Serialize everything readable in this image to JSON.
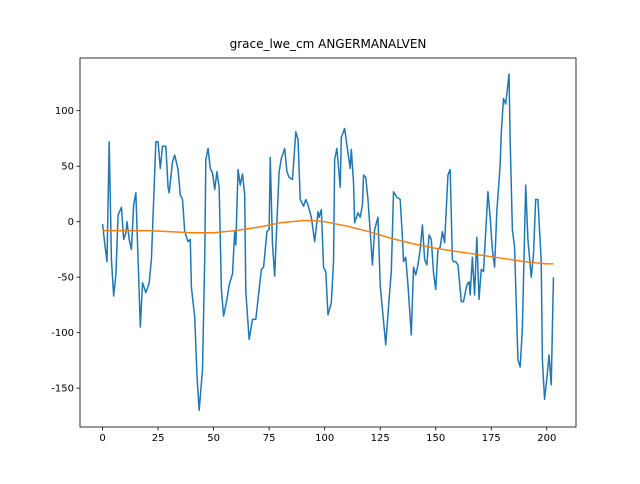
{
  "chart_data": {
    "type": "line",
    "title": "grace_lwe_cm ANGERMANALVEN",
    "xlim": [
      -10.15,
      213.15
    ],
    "ylim": [
      -185,
      147.5
    ],
    "xticks": [
      0,
      25,
      50,
      75,
      100,
      125,
      150,
      175,
      200
    ],
    "yticks": [
      -150,
      -100,
      -50,
      0,
      50,
      100
    ],
    "series": [
      {
        "color": "#1f77b4",
        "x": [
          0,
          1,
          2,
          3,
          4,
          5,
          6,
          7,
          8.5,
          9.5,
          10.5,
          11,
          12,
          13,
          14,
          15,
          17,
          18,
          19.5,
          21,
          22,
          24,
          25,
          26,
          27,
          28.5,
          29.5,
          30,
          31.5,
          32.5,
          34,
          35,
          36,
          37,
          38.5,
          39.5,
          40,
          41.5,
          42.5,
          43.5,
          45,
          46,
          46.5,
          47.5,
          48.5,
          49.5,
          50.5,
          51.5,
          52.5,
          53.5,
          54.5,
          56,
          57,
          58.5,
          59.5,
          60,
          61,
          62,
          63,
          64,
          64.5,
          66,
          67.5,
          69,
          70.5,
          71.5,
          72.5,
          74,
          75,
          75.5,
          76.5,
          77.5,
          78.5,
          79.5,
          80.5,
          82,
          83,
          84,
          85.5,
          87,
          88,
          89,
          90.5,
          91.5,
          92.5,
          94,
          95.5,
          97,
          97.5,
          98.5,
          99.5,
          100.5,
          101.5,
          103,
          104,
          104.5,
          105.5,
          107,
          107.5,
          109,
          110,
          111.5,
          112,
          113,
          113.5,
          115,
          116,
          117,
          117.5,
          118.5,
          119.5,
          120.5,
          121.5,
          122.5,
          124,
          125,
          126,
          127.5,
          129,
          130,
          131,
          132.5,
          134,
          135,
          135.5,
          136.5,
          137.5,
          139,
          140,
          141,
          142,
          143,
          144,
          145,
          146,
          147,
          148,
          149,
          150,
          151,
          152,
          153,
          154,
          155.5,
          156.5,
          157.5,
          158,
          159,
          160,
          161.5,
          162.5,
          164,
          165,
          165.5,
          166.5,
          167.5,
          168.5,
          169.5,
          170.5,
          171.5,
          172.5,
          173.5,
          174.5,
          175.5,
          176.5,
          177.5,
          179,
          179.5,
          180.5,
          181.5,
          183,
          183.5,
          184.5,
          185.5,
          187,
          188,
          189,
          190.5,
          191.5,
          193,
          194,
          195,
          196,
          197.5,
          198,
          199,
          200,
          201,
          202,
          203
        ],
        "values": [
          -2,
          -20,
          -36,
          72,
          -34,
          -67,
          -48,
          6,
          13,
          -16,
          -10,
          0,
          -16,
          -25,
          15,
          26,
          -95,
          -55,
          -64,
          -55,
          -34,
          72,
          72,
          48,
          68,
          68,
          31,
          26,
          54,
          60,
          47,
          24,
          20,
          -9,
          -18,
          -16,
          -59,
          -86,
          -138,
          -170,
          -133,
          -34,
          56,
          66,
          48,
          44,
          29,
          45,
          31,
          -61,
          -85,
          -70,
          -57,
          -47,
          -9,
          -21,
          47,
          33,
          43,
          24,
          -63,
          -106,
          -88,
          -88,
          -61,
          -43,
          -41,
          -9,
          -7,
          58,
          -20,
          -49,
          0,
          45,
          57,
          66,
          45,
          40,
          38,
          81,
          74,
          20,
          14,
          20,
          15,
          4,
          -18,
          9,
          4,
          11,
          -41,
          -45,
          -84,
          -73,
          -36,
          56,
          66,
          31,
          76,
          84,
          69,
          48,
          65,
          35,
          -1,
          8,
          4,
          15,
          42,
          40,
          20,
          -9,
          -39,
          -7,
          4,
          -57,
          -79,
          -111,
          -70,
          -45,
          27,
          22,
          20,
          -14,
          -36,
          -32,
          -57,
          -102,
          -41,
          -48,
          -39,
          -25,
          -3,
          -34,
          -39,
          -12,
          -16,
          -46,
          -61,
          -25,
          -23,
          -9,
          -19,
          42,
          47,
          -34,
          -36,
          -36,
          -39,
          -72,
          -72,
          -57,
          -54,
          -66,
          -32,
          -66,
          -14,
          -70,
          -43,
          -45,
          -9,
          27,
          4,
          -25,
          -41,
          9,
          51,
          80,
          111,
          106,
          133,
          74,
          -7,
          -23,
          -124,
          -131,
          -97,
          33,
          -16,
          -50,
          -30,
          20,
          20,
          -36,
          -124,
          -160,
          -142,
          -120,
          -147,
          -50
        ]
      },
      {
        "color": "#ff7f0e",
        "x": [
          0,
          10,
          20,
          30,
          40,
          50,
          60,
          70,
          80,
          90,
          95,
          100,
          110,
          120,
          130,
          140,
          150,
          160,
          170,
          180,
          190,
          200,
          203
        ],
        "values": [
          -8,
          -8,
          -8,
          -9,
          -10,
          -10,
          -8,
          -5,
          -1,
          1,
          1,
          0,
          -4,
          -9,
          -15,
          -20,
          -24,
          -27,
          -30,
          -33,
          -36,
          -38,
          -38
        ]
      }
    ]
  }
}
